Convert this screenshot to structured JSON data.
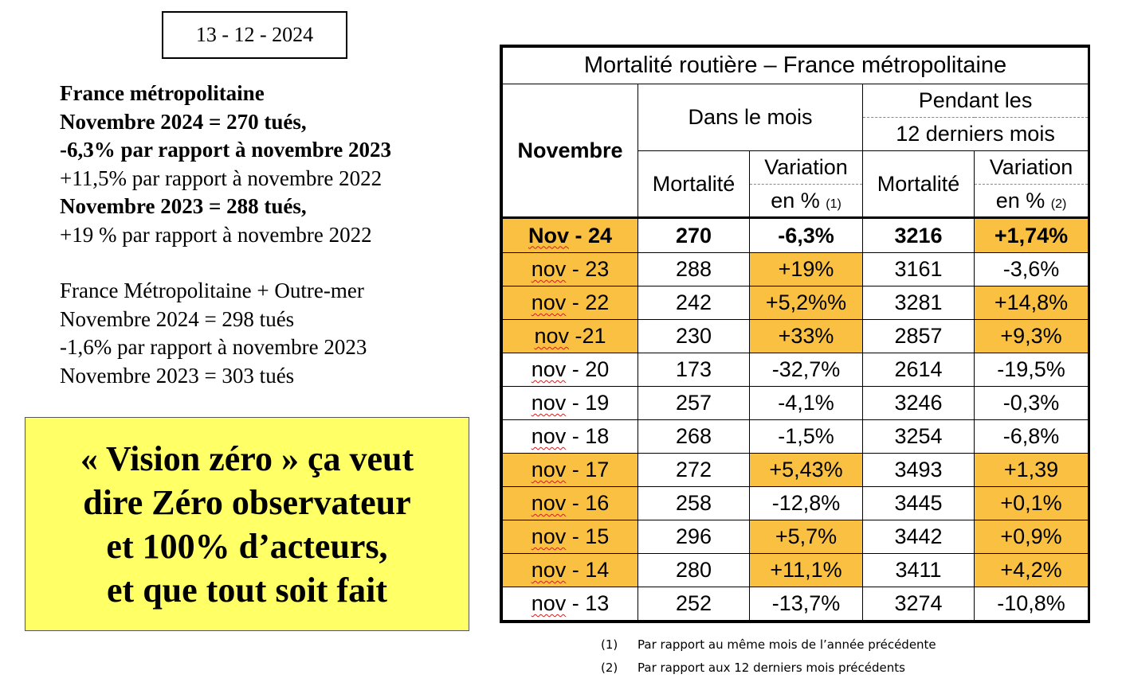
{
  "date": "13 - 12 - 2024",
  "summary": {
    "l1": "France métropolitaine",
    "l2": "Novembre 2024 = 270 tués,",
    "l3": "-6,3% par rapport à novembre 2023",
    "l4": "+11,5% par rapport à novembre 2022",
    "l5": "Novembre 2023 = 288 tués,",
    "l6": "+19 % par rapport à novembre 2022",
    "l7": "France Métropolitaine + Outre-mer",
    "l8": "Novembre 2024 = 298 tués",
    "l9": "-1,6% par rapport à novembre 2023",
    "l10": "Novembre 2023 = 303 tués"
  },
  "vision": {
    "l1": "« Vision zéro » ça veut",
    "l2": "dire Zéro observateur",
    "l3": "et 100% d’acteurs,",
    "l4": "et que tout soit fait"
  },
  "table": {
    "title": "Mortalité routière – France métropolitaine",
    "col_month": "Novembre",
    "group1": "Dans le mois",
    "group2_top": "Pendant les",
    "group2_bottom": "12 derniers mois",
    "mortalite": "Mortalité",
    "variation": "Variation",
    "en_pct": "en %",
    "note1_ref": "(1)",
    "note2_ref": "(2)",
    "rows": [
      {
        "m1": "Nov",
        "m2": " - 24",
        "mort": "270",
        "var": "-6,3%",
        "mort12": "3216",
        "var12": "+1,74%"
      },
      {
        "m1": "nov",
        "m2": " - 23",
        "mort": "288",
        "var": "+19%",
        "mort12": "3161",
        "var12": "-3,6%"
      },
      {
        "m1": "nov",
        "m2": " - 22",
        "mort": "242",
        "var": "+5,2%%",
        "mort12": "3281",
        "var12": "+14,8%"
      },
      {
        "m1": "nov",
        "m2": " -21",
        "mort": "230",
        "var": "+33%",
        "mort12": "2857",
        "var12": "+9,3%"
      },
      {
        "m1": "nov",
        "m2": " - 20",
        "mort": "173",
        "var": "-32,7%",
        "mort12": "2614",
        "var12": "-19,5%"
      },
      {
        "m1": "nov",
        "m2": " - 19",
        "mort": "257",
        "var": "-4,1%",
        "mort12": "3246",
        "var12": "-0,3%"
      },
      {
        "m1": "nov",
        "m2": " - 18",
        "mort": "268",
        "var": "-1,5%",
        "mort12": "3254",
        "var12": "-6,8%"
      },
      {
        "m1": "nov",
        "m2": " - 17",
        "mort": "272",
        "var": "+5,43%",
        "mort12": "3493",
        "var12": "+1,39"
      },
      {
        "m1": "nov",
        "m2": " - 16",
        "mort": "258",
        "var": "-12,8%",
        "mort12": "3445",
        "var12": "+0,1%"
      },
      {
        "m1": "nov",
        "m2": " - 15",
        "mort": "296",
        "var": "+5,7%",
        "mort12": "3442",
        "var12": "+0,9%"
      },
      {
        "m1": "nov",
        "m2": " - 14",
        "mort": "280",
        "var": "+11,1%",
        "mort12": "3411",
        "var12": "+4,2%"
      },
      {
        "m1": "nov",
        "m2": " - 13",
        "mort": "252",
        "var": "-13,7%",
        "mort12": "3274",
        "var12": "-10,8%"
      }
    ]
  },
  "notes": {
    "n1_num": "(1)",
    "n1_text": "Par rapport au même mois de l’année précédente",
    "n2_num": "(2)",
    "n2_text": "Par rapport aux 12 derniers mois précédents"
  },
  "colors": {
    "highlight": "#f9c042",
    "vision_bg": "#ffff66"
  }
}
